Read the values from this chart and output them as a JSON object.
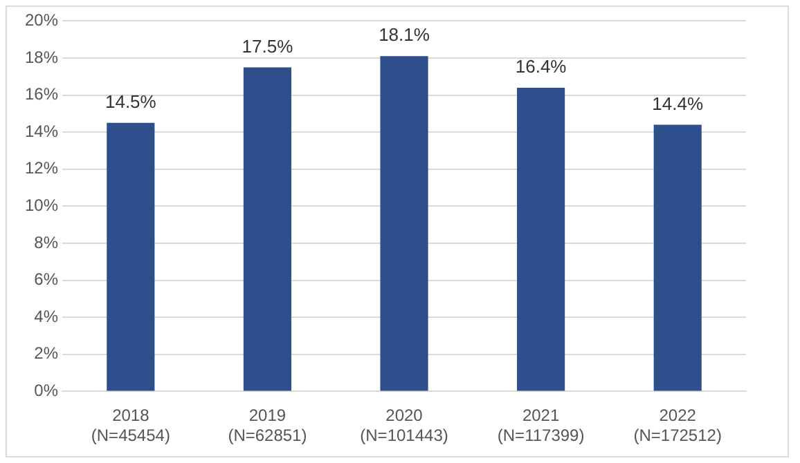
{
  "chart_data": {
    "type": "bar",
    "categories": [
      "2018\n(N=45454)",
      "2019\n(N=62851)",
      "2020\n(N=101443)",
      "2021\n(N=117399)",
      "2022\n(N=172512)"
    ],
    "values": [
      14.5,
      17.5,
      18.1,
      16.4,
      14.4
    ],
    "value_labels": [
      "14.5%",
      "17.5%",
      "18.1%",
      "16.4%",
      "14.4%"
    ],
    "color": "#2e4f8b",
    "ylim": [
      0,
      20
    ],
    "yticks": [
      {
        "value": 0,
        "label": "0%"
      },
      {
        "value": 2,
        "label": "2%"
      },
      {
        "value": 4,
        "label": "4%"
      },
      {
        "value": 6,
        "label": "6%"
      },
      {
        "value": 8,
        "label": "8%"
      },
      {
        "value": 10,
        "label": "10%"
      },
      {
        "value": 12,
        "label": "12%"
      },
      {
        "value": 14,
        "label": "14%"
      },
      {
        "value": 16,
        "label": "16%"
      },
      {
        "value": 18,
        "label": "18%"
      },
      {
        "value": 20,
        "label": "20%"
      }
    ],
    "grid": "y"
  }
}
